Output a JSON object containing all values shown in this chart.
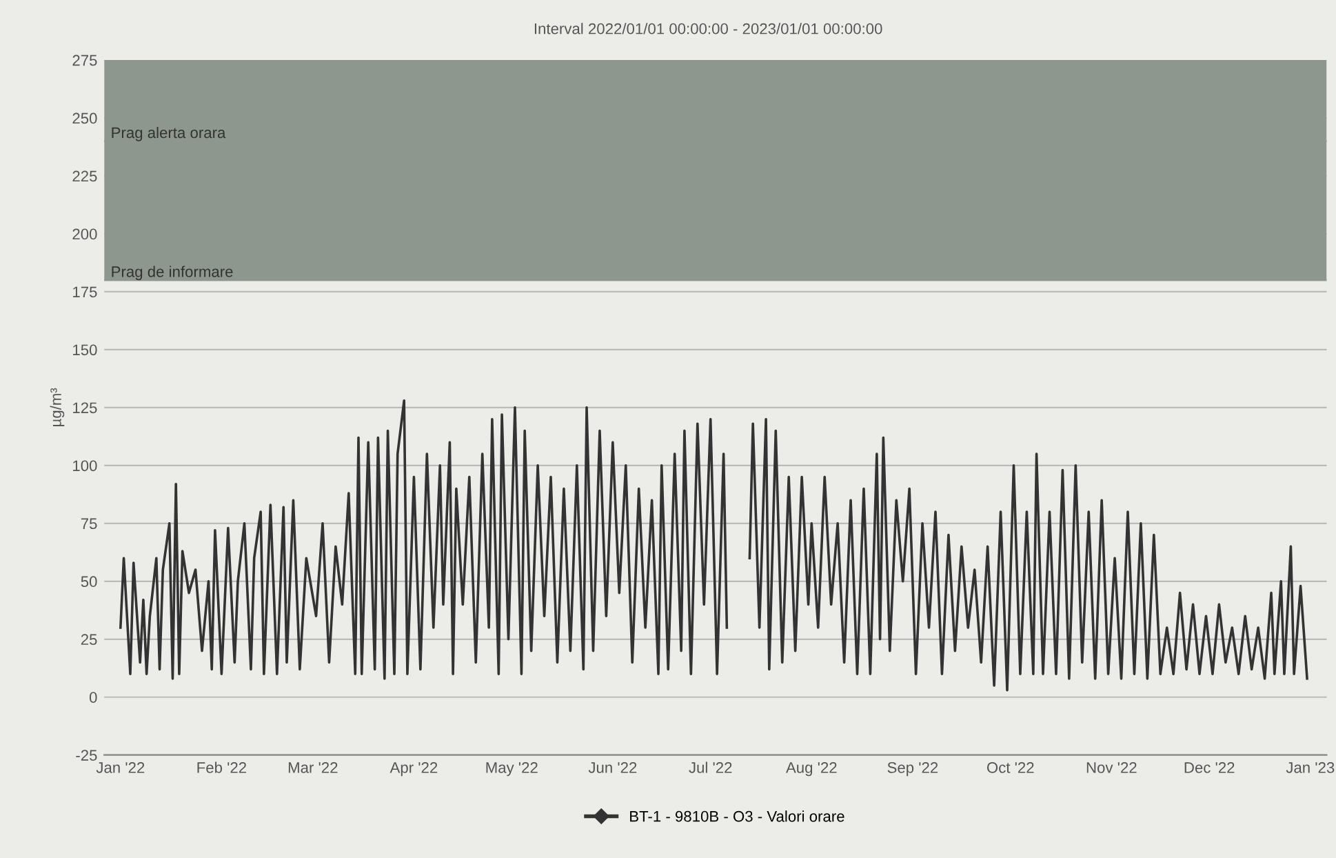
{
  "chart_data": {
    "type": "line",
    "title": "Interval 2022/01/01 00:00:00 - 2023/01/01 00:00:00",
    "ylabel": "µg/m³",
    "xlim": [
      "2021-12-27",
      "2023-01-06"
    ],
    "ylim": [
      -25,
      275
    ],
    "yticks": [
      -25,
      0,
      25,
      50,
      75,
      100,
      125,
      150,
      175,
      200,
      225,
      250,
      275
    ],
    "xticks": [
      {
        "value": "2022-01-01",
        "label": "Jan '22"
      },
      {
        "value": "2022-02-01",
        "label": "Feb '22"
      },
      {
        "value": "2022-03-01",
        "label": "Mar '22"
      },
      {
        "value": "2022-04-01",
        "label": "Apr '22"
      },
      {
        "value": "2022-05-01",
        "label": "May '22"
      },
      {
        "value": "2022-06-01",
        "label": "Jun '22"
      },
      {
        "value": "2022-07-01",
        "label": "Jul '22"
      },
      {
        "value": "2022-08-01",
        "label": "Aug '22"
      },
      {
        "value": "2022-09-01",
        "label": "Sep '22"
      },
      {
        "value": "2022-10-01",
        "label": "Oct '22"
      },
      {
        "value": "2022-11-01",
        "label": "Nov '22"
      },
      {
        "value": "2022-12-01",
        "label": "Dec '22"
      },
      {
        "value": "2023-01-01",
        "label": "Jan '23"
      }
    ],
    "grid": "y",
    "legend": "bottom",
    "line_style": "solid",
    "bands": [
      {
        "axis": "y",
        "from": 180,
        "to": 275,
        "color": "#8e978e"
      }
    ],
    "ref_lines": [
      {
        "axis": "y",
        "value": 180,
        "label": "Prag de informare",
        "color": "#8e978e"
      },
      {
        "axis": "y",
        "value": 240,
        "label": "Prag alerta orara",
        "color": "#8e978e"
      }
    ],
    "series": [
      {
        "name": "BT-1 - 9810B - O3 - Valori orare",
        "color": "#333333",
        "x": [
          "2022-01-01",
          "2022-01-02",
          "2022-01-04",
          "2022-01-05",
          "2022-01-07",
          "2022-01-08",
          "2022-01-09",
          "2022-01-10",
          "2022-01-12",
          "2022-01-13",
          "2022-01-14",
          "2022-01-16",
          "2022-01-17",
          "2022-01-18",
          "2022-01-19",
          "2022-01-20",
          "2022-01-22",
          "2022-01-24",
          "2022-01-26",
          "2022-01-28",
          "2022-01-29",
          "2022-01-30",
          "2022-02-01",
          "2022-02-03",
          "2022-02-05",
          "2022-02-06",
          "2022-02-08",
          "2022-02-10",
          "2022-02-11",
          "2022-02-13",
          "2022-02-14",
          "2022-02-16",
          "2022-02-18",
          "2022-02-20",
          "2022-02-21",
          "2022-02-23",
          "2022-02-25",
          "2022-02-27",
          "2022-03-02",
          "2022-03-04",
          "2022-03-06",
          "2022-03-08",
          "2022-03-10",
          "2022-03-12",
          "2022-03-14",
          "2022-03-15",
          "2022-03-16",
          "2022-03-18",
          "2022-03-20",
          "2022-03-21",
          "2022-03-23",
          "2022-03-24",
          "2022-03-26",
          "2022-03-27",
          "2022-03-29",
          "2022-03-30",
          "2022-04-01",
          "2022-04-03",
          "2022-04-05",
          "2022-04-07",
          "2022-04-09",
          "2022-04-10",
          "2022-04-12",
          "2022-04-13",
          "2022-04-14",
          "2022-04-16",
          "2022-04-18",
          "2022-04-20",
          "2022-04-22",
          "2022-04-24",
          "2022-04-25",
          "2022-04-27",
          "2022-04-28",
          "2022-04-30",
          "2022-05-02",
          "2022-05-04",
          "2022-05-05",
          "2022-05-07",
          "2022-05-09",
          "2022-05-11",
          "2022-05-13",
          "2022-05-15",
          "2022-05-17",
          "2022-05-19",
          "2022-05-21",
          "2022-05-23",
          "2022-05-24",
          "2022-05-26",
          "2022-05-28",
          "2022-05-30",
          "2022-06-01",
          "2022-06-03",
          "2022-06-05",
          "2022-06-07",
          "2022-06-09",
          "2022-06-11",
          "2022-06-13",
          "2022-06-15",
          "2022-06-16",
          "2022-06-18",
          "2022-06-20",
          "2022-06-22",
          "2022-06-23",
          "2022-06-25",
          "2022-06-27",
          "2022-06-29",
          "2022-07-01",
          "2022-07-03",
          "2022-07-05",
          "2022-07-06",
          "2022-07-10",
          "2022-07-13",
          "2022-07-14",
          "2022-07-16",
          "2022-07-18",
          "2022-07-19",
          "2022-07-21",
          "2022-07-23",
          "2022-07-25",
          "2022-07-27",
          "2022-07-29",
          "2022-07-31",
          "2022-08-01",
          "2022-08-03",
          "2022-08-05",
          "2022-08-07",
          "2022-08-09",
          "2022-08-11",
          "2022-08-13",
          "2022-08-15",
          "2022-08-17",
          "2022-08-19",
          "2022-08-21",
          "2022-08-22",
          "2022-08-23",
          "2022-08-25",
          "2022-08-27",
          "2022-08-29",
          "2022-08-31",
          "2022-09-02",
          "2022-09-04",
          "2022-09-06",
          "2022-09-08",
          "2022-09-10",
          "2022-09-12",
          "2022-09-14",
          "2022-09-16",
          "2022-09-18",
          "2022-09-20",
          "2022-09-22",
          "2022-09-24",
          "2022-09-26",
          "2022-09-28",
          "2022-09-30",
          "2022-10-02",
          "2022-10-04",
          "2022-10-06",
          "2022-10-08",
          "2022-10-09",
          "2022-10-11",
          "2022-10-13",
          "2022-10-15",
          "2022-10-17",
          "2022-10-19",
          "2022-10-21",
          "2022-10-23",
          "2022-10-25",
          "2022-10-27",
          "2022-10-29",
          "2022-10-31",
          "2022-11-02",
          "2022-11-04",
          "2022-11-06",
          "2022-11-08",
          "2022-11-10",
          "2022-11-12",
          "2022-11-14",
          "2022-11-16",
          "2022-11-18",
          "2022-11-20",
          "2022-11-22",
          "2022-11-24",
          "2022-11-26",
          "2022-11-28",
          "2022-11-30",
          "2022-12-02",
          "2022-12-04",
          "2022-12-06",
          "2022-12-08",
          "2022-12-10",
          "2022-12-12",
          "2022-12-14",
          "2022-12-16",
          "2022-12-18",
          "2022-12-20",
          "2022-12-21",
          "2022-12-23",
          "2022-12-24",
          "2022-12-26",
          "2022-12-27",
          "2022-12-29",
          "2022-12-31"
        ],
        "values": [
          30,
          60,
          10,
          58,
          15,
          42,
          10,
          35,
          60,
          12,
          55,
          75,
          8,
          92,
          10,
          63,
          45,
          55,
          20,
          50,
          12,
          72,
          10,
          73,
          15,
          50,
          75,
          12,
          60,
          80,
          10,
          83,
          10,
          82,
          15,
          85,
          12,
          60,
          35,
          75,
          15,
          65,
          40,
          88,
          10,
          112,
          10,
          110,
          12,
          112,
          8,
          115,
          10,
          105,
          128,
          10,
          95,
          12,
          105,
          30,
          100,
          40,
          110,
          10,
          90,
          40,
          95,
          15,
          105,
          30,
          120,
          10,
          122,
          25,
          125,
          10,
          115,
          20,
          100,
          35,
          95,
          15,
          90,
          20,
          100,
          12,
          125,
          20,
          115,
          35,
          110,
          45,
          100,
          15,
          90,
          30,
          85,
          10,
          100,
          12,
          105,
          20,
          115,
          10,
          118,
          40,
          120,
          10,
          105,
          30,
          null,
          60,
          118,
          30,
          120,
          12,
          115,
          15,
          95,
          20,
          95,
          40,
          75,
          30,
          95,
          40,
          75,
          15,
          85,
          10,
          90,
          10,
          105,
          25,
          112,
          20,
          85,
          50,
          90,
          10,
          75,
          30,
          80,
          10,
          70,
          20,
          65,
          30,
          55,
          15,
          65,
          5,
          80,
          3,
          100,
          10,
          80,
          10,
          105,
          10,
          80,
          10,
          98,
          8,
          100,
          15,
          80,
          8,
          85,
          10,
          60,
          8,
          80,
          10,
          75,
          8,
          70,
          10,
          30,
          10,
          45,
          12,
          40,
          10,
          35,
          10,
          40,
          15,
          30,
          10,
          35,
          12,
          30,
          8,
          45,
          10,
          50,
          10,
          65,
          10,
          48,
          8
        ]
      }
    ]
  }
}
